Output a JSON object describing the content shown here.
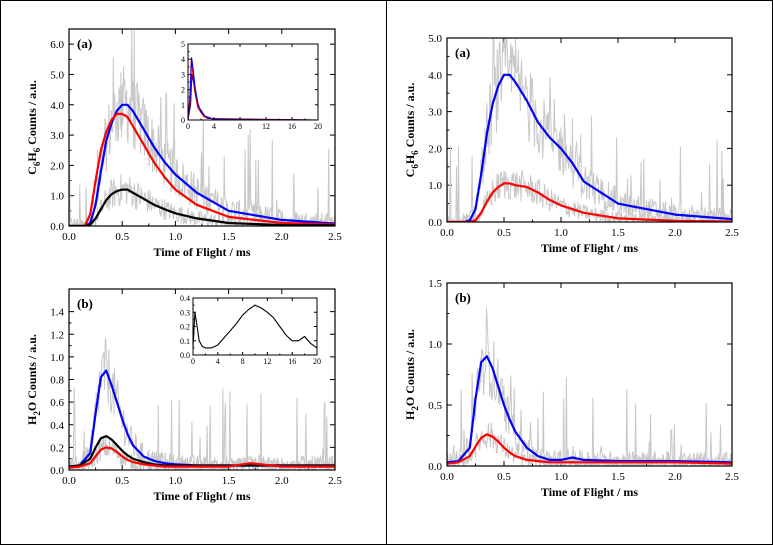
{
  "chart_data": [
    {
      "id": "L_a",
      "type": "line",
      "panel_label": "(a)",
      "xlabel": "Time of Flight / ms",
      "ylabel_parts": [
        "C",
        "6",
        "H",
        "6",
        " Counts / a.u."
      ],
      "xlim": [
        0,
        2.5
      ],
      "ylim": [
        0,
        6.5
      ],
      "xticks": [
        0,
        0.5,
        1,
        1.5,
        2,
        2.5
      ],
      "xtick_labels": [
        "0.0",
        "0.5",
        "1.0",
        "1.5",
        "2.0",
        "2.5"
      ],
      "yticks": [
        0,
        1,
        2,
        3,
        4,
        5,
        6
      ],
      "ytick_labels": [
        "0.0",
        "1.0",
        "2.0",
        "3.0",
        "4.0",
        "5.0",
        "6.0"
      ],
      "raw": {
        "color": "#c8c8c8"
      },
      "series": [
        {
          "color": "#0000ff",
          "x": [
            0,
            0.15,
            0.2,
            0.25,
            0.3,
            0.35,
            0.4,
            0.45,
            0.5,
            0.55,
            0.6,
            0.7,
            0.8,
            0.9,
            1.0,
            1.2,
            1.5,
            2.0,
            2.5
          ],
          "y": [
            0,
            0,
            0.1,
            0.7,
            1.8,
            2.8,
            3.4,
            3.8,
            4.0,
            4.0,
            3.8,
            3.2,
            2.6,
            2.1,
            1.7,
            1.1,
            0.5,
            0.2,
            0.08
          ]
        },
        {
          "color": "#ff0000",
          "x": [
            0,
            0.15,
            0.2,
            0.25,
            0.3,
            0.35,
            0.4,
            0.45,
            0.5,
            0.55,
            0.6,
            0.7,
            0.8,
            0.9,
            1.0,
            1.2,
            1.5,
            2.0,
            2.5
          ],
          "y": [
            0,
            0,
            0.4,
            1.5,
            2.5,
            3.1,
            3.5,
            3.7,
            3.7,
            3.6,
            3.3,
            2.7,
            2.1,
            1.6,
            1.2,
            0.7,
            0.3,
            0.1,
            0.05
          ]
        },
        {
          "color": "#000000",
          "x": [
            0,
            0.15,
            0.2,
            0.25,
            0.3,
            0.35,
            0.4,
            0.45,
            0.5,
            0.55,
            0.6,
            0.7,
            0.8,
            0.9,
            1.0,
            1.2,
            1.5,
            2.0,
            2.5
          ],
          "y": [
            0,
            0,
            0.05,
            0.25,
            0.55,
            0.85,
            1.05,
            1.15,
            1.2,
            1.2,
            1.1,
            0.9,
            0.7,
            0.55,
            0.42,
            0.25,
            0.1,
            0.03,
            0.02
          ]
        }
      ],
      "inset": {
        "xlim": [
          0,
          20
        ],
        "ylim": [
          0,
          5
        ],
        "xticks": [
          0,
          4,
          8,
          12,
          16,
          20
        ],
        "xtick_labels": [
          "0",
          "4",
          "8",
          "12",
          "16",
          "20"
        ],
        "yticks": [
          0,
          1,
          2,
          3,
          4,
          5
        ],
        "ytick_labels": [
          "0",
          "1",
          "2",
          "3",
          "4",
          "5"
        ],
        "series": [
          {
            "color": "#ff0000",
            "x": [
              0,
              0.3,
              0.5,
              0.7,
              1.0,
              1.5,
              2.5,
              4,
              20
            ],
            "y": [
              0,
              1.5,
              4.0,
              3.2,
              2.0,
              0.8,
              0.2,
              0.05,
              0
            ]
          },
          {
            "color": "#0000ff",
            "x": [
              0,
              0.3,
              0.55,
              0.8,
              1.1,
              1.6,
              2.6,
              4,
              20
            ],
            "y": [
              0,
              1.2,
              4.1,
              3.3,
              2.1,
              0.9,
              0.25,
              0.05,
              0
            ]
          },
          {
            "color": "#5a005a",
            "x": [
              0,
              0.4,
              0.6,
              0.9,
              1.3,
              2.0,
              3.0,
              20
            ],
            "y": [
              0,
              1.0,
              3.0,
              2.4,
              1.4,
              0.5,
              0.1,
              0
            ]
          }
        ]
      }
    },
    {
      "id": "L_b",
      "type": "line",
      "panel_label": "(b)",
      "xlabel": "Time of Flight / ms",
      "ylabel_parts": [
        "H",
        "2",
        "O Counts / a.u.",
        "",
        ""
      ],
      "xlim": [
        0,
        2.5
      ],
      "ylim": [
        0,
        1.6
      ],
      "xticks": [
        0,
        0.5,
        1,
        1.5,
        2,
        2.5
      ],
      "xtick_labels": [
        "0.0",
        "0.5",
        "1.0",
        "1.5",
        "2.0",
        "2.5"
      ],
      "yticks": [
        0,
        0.2,
        0.4,
        0.6,
        0.8,
        1.0,
        1.2,
        1.4
      ],
      "ytick_labels": [
        "0.0",
        "0.2",
        "0.4",
        "0.6",
        "0.8",
        "1.0",
        "1.2",
        "1.4"
      ],
      "raw": {
        "color": "#c8c8c8"
      },
      "series": [
        {
          "color": "#0000ff",
          "x": [
            0,
            0.1,
            0.2,
            0.25,
            0.3,
            0.35,
            0.4,
            0.45,
            0.5,
            0.55,
            0.6,
            0.7,
            0.8,
            0.9,
            1.0,
            1.2,
            1.5,
            2.0,
            2.5
          ],
          "y": [
            0.03,
            0.04,
            0.15,
            0.5,
            0.82,
            0.88,
            0.75,
            0.6,
            0.45,
            0.32,
            0.22,
            0.12,
            0.08,
            0.06,
            0.05,
            0.04,
            0.04,
            0.04,
            0.04
          ]
        },
        {
          "color": "#000000",
          "x": [
            0,
            0.1,
            0.2,
            0.25,
            0.3,
            0.35,
            0.4,
            0.45,
            0.5,
            0.55,
            0.6,
            0.7,
            0.8,
            0.9,
            1.0,
            1.2,
            1.5,
            2.0,
            2.5
          ],
          "y": [
            0.03,
            0.04,
            0.1,
            0.2,
            0.28,
            0.3,
            0.27,
            0.22,
            0.17,
            0.13,
            0.1,
            0.07,
            0.05,
            0.04,
            0.04,
            0.04,
            0.04,
            0.04,
            0.04
          ]
        },
        {
          "color": "#ff0000",
          "x": [
            0,
            0.1,
            0.2,
            0.25,
            0.3,
            0.35,
            0.4,
            0.45,
            0.5,
            0.55,
            0.6,
            0.7,
            0.8,
            0.9,
            1.0,
            1.2,
            1.5,
            1.7,
            2.0,
            2.5
          ],
          "y": [
            0.02,
            0.03,
            0.06,
            0.12,
            0.18,
            0.2,
            0.19,
            0.16,
            0.12,
            0.09,
            0.07,
            0.05,
            0.04,
            0.03,
            0.03,
            0.03,
            0.03,
            0.06,
            0.03,
            0.03
          ]
        }
      ],
      "inset": {
        "xlim": [
          0,
          20
        ],
        "ylim": [
          0,
          0.4
        ],
        "xticks": [
          0,
          4,
          8,
          12,
          16,
          20
        ],
        "xtick_labels": [
          "0",
          "4",
          "8",
          "12",
          "16",
          "20"
        ],
        "yticks": [
          0,
          0.1,
          0.2,
          0.3,
          0.4
        ],
        "ytick_labels": [
          "0.0",
          "0.1",
          "0.2",
          "0.3",
          "0.4"
        ],
        "series": [
          {
            "color": "#000000",
            "x": [
              0,
              0.3,
              0.6,
              1.0,
              1.5,
              2.0,
              3.0,
              4.0,
              5.0,
              6.0,
              7.0,
              8.0,
              9.0,
              10.0,
              11.0,
              12.0,
              13.0,
              14.0,
              15.0,
              16.0,
              17.0,
              18.0,
              19.0,
              20.0
            ],
            "y": [
              0.05,
              0.3,
              0.22,
              0.1,
              0.06,
              0.05,
              0.05,
              0.07,
              0.12,
              0.17,
              0.22,
              0.28,
              0.32,
              0.35,
              0.33,
              0.3,
              0.26,
              0.2,
              0.14,
              0.1,
              0.1,
              0.13,
              0.08,
              0.05
            ]
          }
        ]
      }
    },
    {
      "id": "R_a",
      "type": "line",
      "panel_label": "(a)",
      "xlabel": "Time of Flight / ms",
      "ylabel_parts": [
        "C",
        "6",
        "H",
        "6",
        " Counts / a.u."
      ],
      "xlim": [
        0,
        2.5
      ],
      "ylim": [
        0,
        5
      ],
      "xticks": [
        0,
        0.5,
        1,
        1.5,
        2,
        2.5
      ],
      "xtick_labels": [
        "0.0",
        "0.5",
        "1.0",
        "1.5",
        "2.0",
        "2.5"
      ],
      "yticks": [
        0,
        1,
        2,
        3,
        4,
        5
      ],
      "ytick_labels": [
        "0.0",
        "1.0",
        "2.0",
        "3.0",
        "4.0",
        "5.0"
      ],
      "raw": {
        "color": "#c8c8c8"
      },
      "series": [
        {
          "color": "#0000ff",
          "x": [
            0,
            0.15,
            0.2,
            0.25,
            0.3,
            0.35,
            0.4,
            0.45,
            0.5,
            0.55,
            0.6,
            0.7,
            0.8,
            0.9,
            1.0,
            1.1,
            1.2,
            1.5,
            2.0,
            2.5
          ],
          "y": [
            0,
            0,
            0.05,
            0.35,
            1.3,
            2.4,
            3.2,
            3.7,
            4.0,
            4.0,
            3.8,
            3.3,
            2.7,
            2.3,
            2.0,
            1.6,
            1.1,
            0.5,
            0.2,
            0.08
          ]
        },
        {
          "color": "#ff0000",
          "x": [
            0,
            0.2,
            0.25,
            0.3,
            0.35,
            0.4,
            0.45,
            0.5,
            0.55,
            0.6,
            0.7,
            0.8,
            0.9,
            1.0,
            1.2,
            1.5,
            2.0,
            2.5
          ],
          "y": [
            0,
            0,
            0.05,
            0.25,
            0.55,
            0.8,
            0.95,
            1.05,
            1.05,
            1.0,
            0.95,
            0.8,
            0.6,
            0.45,
            0.25,
            0.1,
            0.03,
            0.01
          ]
        }
      ]
    },
    {
      "id": "R_b",
      "type": "line",
      "panel_label": "(b)",
      "xlabel": "Time of Flight / ms",
      "ylabel_parts": [
        "H",
        "2",
        "O Counts / a.u.",
        "",
        ""
      ],
      "xlim": [
        0,
        2.5
      ],
      "ylim": [
        0,
        1.5
      ],
      "xticks": [
        0,
        0.5,
        1,
        1.5,
        2,
        2.5
      ],
      "xtick_labels": [
        "0.0",
        "0.5",
        "1.0",
        "1.5",
        "2.0",
        "2.5"
      ],
      "yticks": [
        0,
        0.5,
        1,
        1.5
      ],
      "ytick_labels": [
        "0.0",
        "0.5",
        "1.0",
        "1.5"
      ],
      "raw": {
        "color": "#c8c8c8"
      },
      "series": [
        {
          "color": "#0000ff",
          "x": [
            0,
            0.1,
            0.2,
            0.25,
            0.3,
            0.35,
            0.4,
            0.45,
            0.5,
            0.55,
            0.6,
            0.7,
            0.8,
            0.9,
            1.0,
            1.1,
            1.2,
            1.5,
            2.0,
            2.5
          ],
          "y": [
            0.03,
            0.04,
            0.15,
            0.55,
            0.85,
            0.9,
            0.8,
            0.65,
            0.5,
            0.38,
            0.28,
            0.15,
            0.08,
            0.05,
            0.05,
            0.07,
            0.05,
            0.04,
            0.04,
            0.03
          ]
        },
        {
          "color": "#ff0000",
          "x": [
            0,
            0.1,
            0.2,
            0.25,
            0.3,
            0.35,
            0.4,
            0.45,
            0.5,
            0.55,
            0.6,
            0.7,
            0.8,
            0.9,
            1.0,
            1.2,
            1.5,
            2.0,
            2.5
          ],
          "y": [
            0.02,
            0.03,
            0.08,
            0.16,
            0.23,
            0.26,
            0.24,
            0.2,
            0.15,
            0.11,
            0.08,
            0.05,
            0.04,
            0.03,
            0.03,
            0.03,
            0.03,
            0.03,
            0.02
          ]
        }
      ]
    }
  ]
}
